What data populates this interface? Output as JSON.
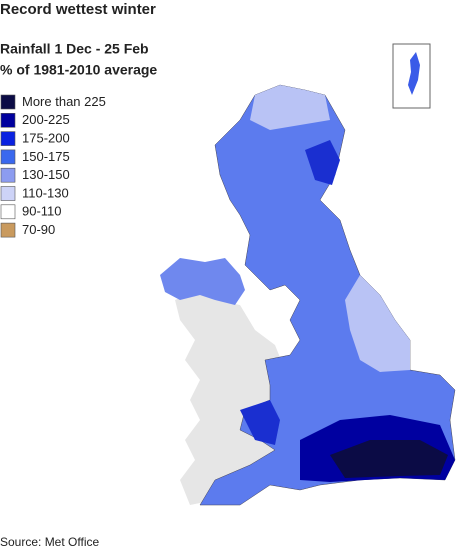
{
  "header": {
    "title": "Record wettest winter",
    "subtitle": [
      "Rainfall 1 Dec - 25 Feb",
      "% of 1981-2010 average"
    ]
  },
  "legend": {
    "items": [
      {
        "label": "More than 225",
        "color": "#0b0b45"
      },
      {
        "label": "200-225",
        "color": "#00009e"
      },
      {
        "label": "175-200",
        "color": "#0a22e0"
      },
      {
        "label": "150-175",
        "color": "#3a68ee"
      },
      {
        "label": "130-150",
        "color": "#8c9cf0"
      },
      {
        "label": "110-130",
        "color": "#cdd3f7"
      },
      {
        "label": "90-110",
        "color": "#ffffff"
      },
      {
        "label": "70-90",
        "color": "#c99a5e"
      }
    ]
  },
  "source": "Source: Met Office"
}
